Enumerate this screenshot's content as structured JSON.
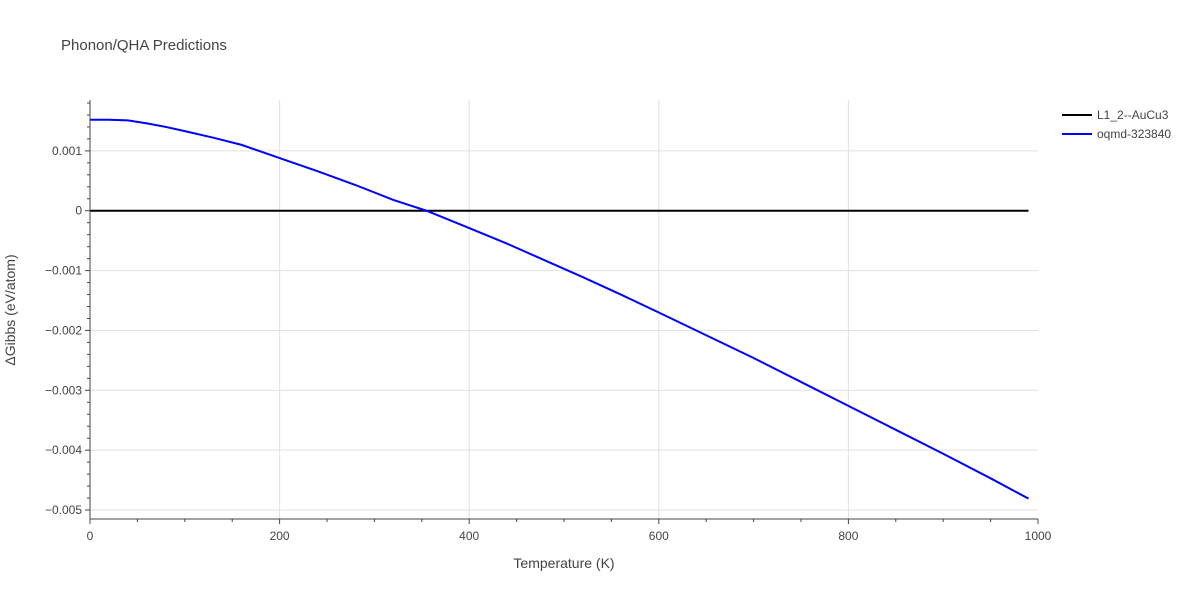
{
  "chart_data": {
    "type": "line",
    "title": "Phonon/QHA Predictions",
    "xlabel": "Temperature (K)",
    "ylabel": "ΔGibbs (eV/atom)",
    "xlim": [
      0,
      1000
    ],
    "ylim": [
      -0.00515,
      0.00185
    ],
    "x_ticks": [
      {
        "value": 0,
        "label": "0"
      },
      {
        "value": 200,
        "label": "200"
      },
      {
        "value": 400,
        "label": "400"
      },
      {
        "value": 600,
        "label": "600"
      },
      {
        "value": 800,
        "label": "800"
      },
      {
        "value": 1000,
        "label": "1000"
      }
    ],
    "y_ticks": [
      {
        "value": 0.001,
        "label": "0.001"
      },
      {
        "value": 0,
        "label": "0"
      },
      {
        "value": -0.001,
        "label": "−0.001"
      },
      {
        "value": -0.002,
        "label": "−0.002"
      },
      {
        "value": -0.003,
        "label": "−0.003"
      },
      {
        "value": -0.004,
        "label": "−0.004"
      },
      {
        "value": -0.005,
        "label": "−0.005"
      }
    ],
    "grid": true,
    "legend_position": "top-right",
    "series": [
      {
        "name": "L1_2--AuCu3",
        "color": "#000000",
        "x": [
          0,
          990
        ],
        "y": [
          0,
          0
        ]
      },
      {
        "name": "oqmd-323840",
        "color": "#0000ff",
        "x": [
          0,
          20,
          40,
          60,
          80,
          100,
          130,
          160,
          200,
          240,
          280,
          320,
          355,
          400,
          440,
          480,
          520,
          560,
          600,
          650,
          700,
          750,
          800,
          850,
          900,
          950,
          990
        ],
        "y": [
          0.00152,
          0.00152,
          0.00151,
          0.00146,
          0.0014,
          0.00133,
          0.00122,
          0.0011,
          0.00088,
          0.00066,
          0.00043,
          0.00018,
          0.0,
          -0.00029,
          -0.00055,
          -0.00083,
          -0.00111,
          -0.0014,
          -0.0017,
          -0.00208,
          -0.00246,
          -0.00286,
          -0.00326,
          -0.00366,
          -0.00406,
          -0.00447,
          -0.00481
        ]
      }
    ]
  }
}
